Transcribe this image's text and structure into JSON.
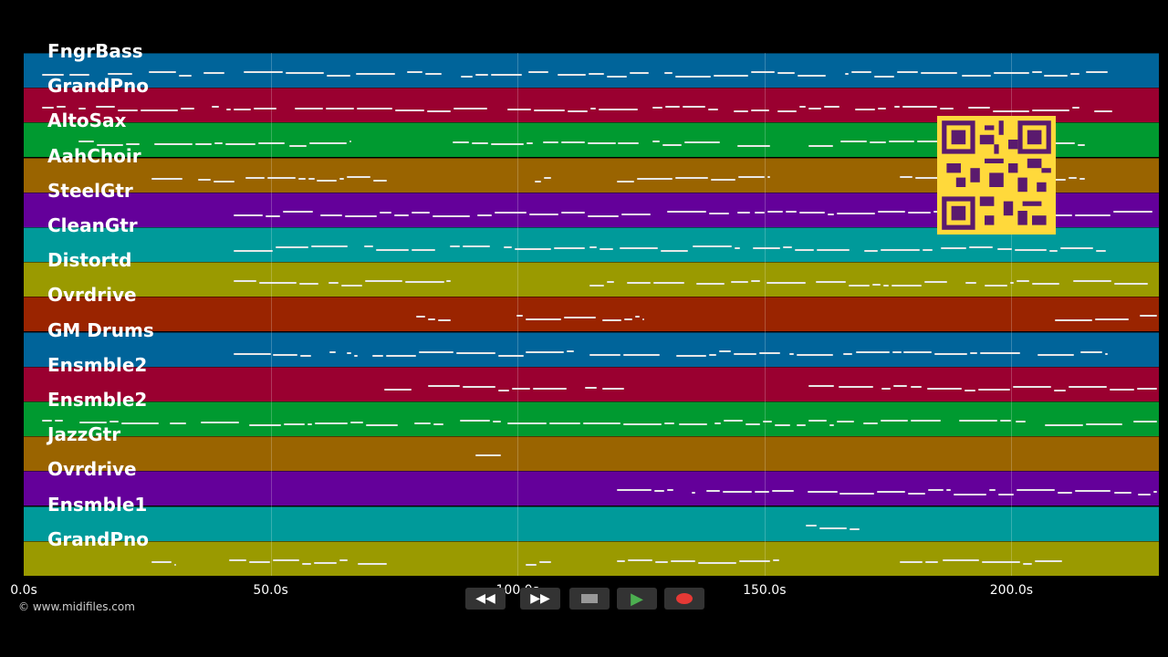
{
  "tracks": [
    {
      "name": "FngrBass",
      "color": "#00649a"
    },
    {
      "name": "GrandPno",
      "color": "#9a0030"
    },
    {
      "name": "AltoSax",
      "color": "#009a30"
    },
    {
      "name": "AahChoir",
      "color": "#9a6400"
    },
    {
      "name": "SteelGtr",
      "color": "#64009a"
    },
    {
      "name": "CleanGtr",
      "color": "#009a9a"
    },
    {
      "name": "Distortd",
      "color": "#9a9a00"
    },
    {
      "name": "Ovrdrive",
      "color": "#9a2400"
    },
    {
      "name": "GM Drums",
      "color": "#00649a"
    },
    {
      "name": "Ensmble2",
      "color": "#9a0030"
    },
    {
      "name": "Ensmble2",
      "color": "#009a30"
    },
    {
      "name": "JazzGtr",
      "color": "#9a6400"
    },
    {
      "name": "Ovrdrive",
      "color": "#64009a"
    },
    {
      "name": "Ensmble1",
      "color": "#009a9a"
    },
    {
      "name": "GrandPno",
      "color": "#9a9a00"
    }
  ],
  "timeline": {
    "ticks": [
      "0.0s",
      "50.0s",
      "100.0s",
      "150.0s",
      "200.0s"
    ],
    "max_seconds": 230
  },
  "copyright": "© www.midifiles.com",
  "transport": {
    "rewind_icon": "rewind-icon",
    "forward_icon": "fast-forward-icon",
    "stop_icon": "stop-icon",
    "play_icon": "play-icon",
    "record_icon": "record-icon",
    "play_color": "#4caf50",
    "record_color": "#e53935"
  },
  "qr_code": {
    "icon": "qr-code-icon",
    "color": "#ffd93b",
    "dark": "#5a1a6e"
  }
}
